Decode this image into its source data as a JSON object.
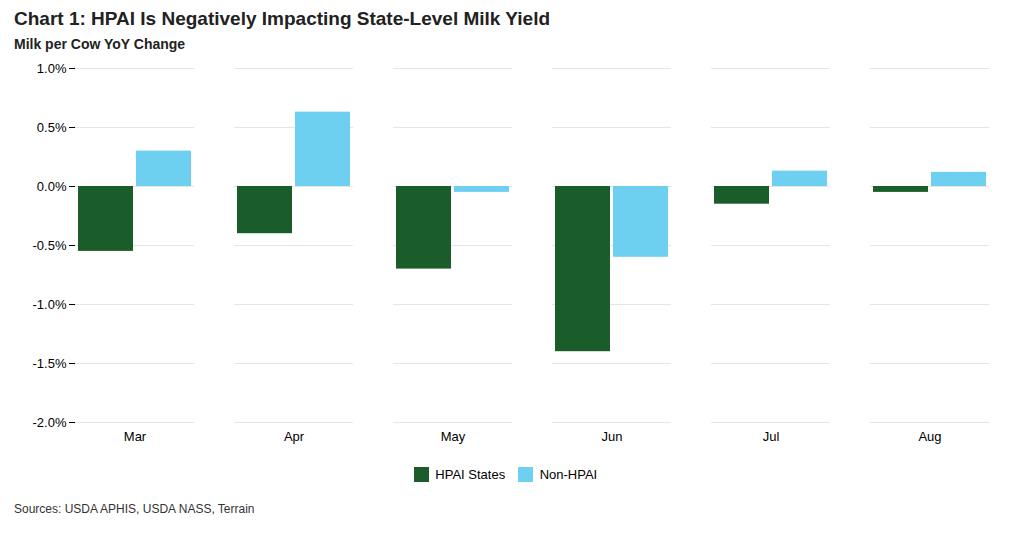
{
  "chart_data": {
    "type": "bar",
    "title": "Chart 1: HPAI Is Negatively Impacting State-Level Milk Yield",
    "subtitle": "Milk per Cow YoY Change",
    "caption": "Sources: USDA APHIS, USDA NASS, Terrain",
    "categories": [
      "Mar",
      "Apr",
      "May",
      "Jun",
      "Jul",
      "Aug"
    ],
    "series": [
      {
        "name": "HPAI States",
        "color": "#1a5c2a",
        "values": [
          -0.0055,
          -0.004,
          -0.007,
          -0.014,
          -0.0015,
          -0.0005
        ]
      },
      {
        "name": "Non-HPAI",
        "color": "#6dd0f0",
        "values": [
          0.003,
          0.0063,
          -0.0005,
          -0.006,
          0.0013,
          0.0012
        ]
      }
    ],
    "ylim": [
      -0.02,
      0.01
    ],
    "yticks": [
      {
        "value": -0.02,
        "label": "-2.0%"
      },
      {
        "value": -0.015,
        "label": "-1.5%"
      },
      {
        "value": -0.01,
        "label": "-1.0%"
      },
      {
        "value": -0.005,
        "label": "-0.5%"
      },
      {
        "value": 0.0,
        "label": "0.0%"
      },
      {
        "value": 0.005,
        "label": "0.5%"
      },
      {
        "value": 0.01,
        "label": "1.0%"
      }
    ],
    "grid": true,
    "legend": "bottom"
  }
}
